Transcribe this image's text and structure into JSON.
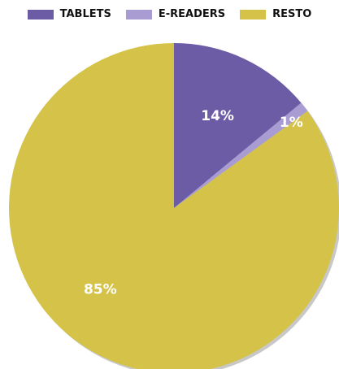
{
  "chart_data": {
    "type": "pie",
    "title": "",
    "legend_position": "top",
    "slices": [
      {
        "name": "TABLETS",
        "value": 14,
        "label": "14%",
        "color": "#6b5ca5"
      },
      {
        "name": "E-READERS",
        "value": 1,
        "label": "1%",
        "color": "#a89cd3"
      },
      {
        "name": "RESTO",
        "value": 85,
        "label": "85%",
        "color": "#d4c348"
      }
    ]
  }
}
